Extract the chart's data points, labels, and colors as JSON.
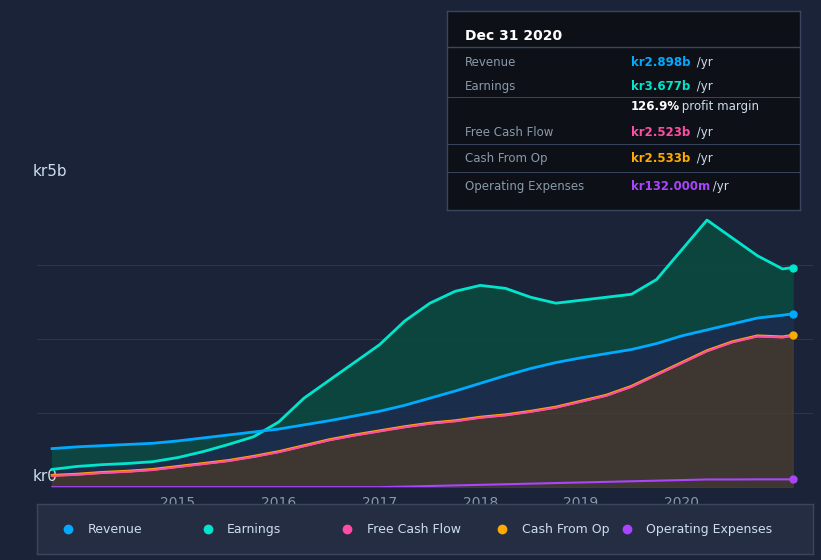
{
  "bg_color": "#1b2338",
  "plot_bg_color": "#1b2338",
  "grid_color": "#2a3550",
  "title_label": "kr5b",
  "zero_label": "kr0",
  "x_ticks": [
    2015,
    2016,
    2017,
    2018,
    2019,
    2020
  ],
  "ylim": [
    0,
    5000000000.0
  ],
  "xlim_start": 2013.6,
  "xlim_end": 2021.3,
  "revenue_color": "#00aaff",
  "earnings_color": "#00e5cc",
  "fcf_color": "#ff4da6",
  "cashop_color": "#ffaa00",
  "opex_color": "#aa44ff",
  "cashop_fill_color": "#4a3f2f",
  "revenue_fill_color": "#1a3050",
  "earnings_fill_color": "#0a4a40",
  "legend_bg": "#252d42",
  "legend_border": "#3a4560",
  "infobox_bg": "#0d1117",
  "infobox_border": "#3a4560",
  "series": {
    "time": [
      2013.75,
      2014.0,
      2014.25,
      2014.5,
      2014.75,
      2015.0,
      2015.25,
      2015.5,
      2015.75,
      2016.0,
      2016.25,
      2016.5,
      2016.75,
      2017.0,
      2017.25,
      2017.5,
      2017.75,
      2018.0,
      2018.25,
      2018.5,
      2018.75,
      2019.0,
      2019.25,
      2019.5,
      2019.75,
      2020.0,
      2020.25,
      2020.5,
      2020.75,
      2021.0,
      2021.1
    ],
    "revenue": [
      650000000.0,
      680000000.0,
      700000000.0,
      720000000.0,
      740000000.0,
      780000000.0,
      830000000.0,
      880000000.0,
      930000000.0,
      980000000.0,
      1050000000.0,
      1120000000.0,
      1200000000.0,
      1280000000.0,
      1380000000.0,
      1500000000.0,
      1620000000.0,
      1750000000.0,
      1880000000.0,
      2000000000.0,
      2100000000.0,
      2180000000.0,
      2250000000.0,
      2320000000.0,
      2420000000.0,
      2550000000.0,
      2650000000.0,
      2750000000.0,
      2850000000.0,
      2898000000.0,
      2920000000.0
    ],
    "earnings": [
      300000000.0,
      350000000.0,
      380000000.0,
      400000000.0,
      430000000.0,
      500000000.0,
      600000000.0,
      720000000.0,
      850000000.0,
      1100000000.0,
      1500000000.0,
      1800000000.0,
      2100000000.0,
      2400000000.0,
      2800000000.0,
      3100000000.0,
      3300000000.0,
      3400000000.0,
      3350000000.0,
      3200000000.0,
      3100000000.0,
      3150000000.0,
      3200000000.0,
      3250000000.0,
      3500000000.0,
      4000000000.0,
      4500000000.0,
      4200000000.0,
      3900000000.0,
      3677000000.0,
      3700000000.0
    ],
    "cashop": [
      200000000.0,
      220000000.0,
      250000000.0,
      270000000.0,
      300000000.0,
      350000000.0,
      400000000.0,
      450000000.0,
      520000000.0,
      600000000.0,
      700000000.0,
      800000000.0,
      880000000.0,
      950000000.0,
      1020000000.0,
      1080000000.0,
      1120000000.0,
      1180000000.0,
      1220000000.0,
      1280000000.0,
      1350000000.0,
      1450000000.0,
      1550000000.0,
      1700000000.0,
      1900000000.0,
      2100000000.0,
      2300000000.0,
      2450000000.0,
      2550000000.0,
      2533000000.0,
      2560000000.0
    ],
    "fcf": [
      190000000.0,
      210000000.0,
      240000000.0,
      260000000.0,
      290000000.0,
      340000000.0,
      390000000.0,
      440000000.0,
      510000000.0,
      590000000.0,
      690000000.0,
      790000000.0,
      870000000.0,
      940000000.0,
      1010000000.0,
      1070000000.0,
      1110000000.0,
      1170000000.0,
      1210000000.0,
      1270000000.0,
      1340000000.0,
      1440000000.0,
      1540000000.0,
      1690000000.0,
      1890000000.0,
      2090000000.0,
      2290000000.0,
      2440000000.0,
      2540000000.0,
      2523000000.0,
      2550000000.0
    ],
    "opex": [
      0.0,
      0.0,
      0.0,
      0.0,
      0.0,
      0.0,
      0.0,
      0.0,
      0.0,
      0.0,
      0.0,
      0.0,
      0.0,
      0.0,
      10000000.0,
      20000000.0,
      30000000.0,
      40000000.0,
      50000000.0,
      60000000.0,
      70000000.0,
      80000000.0,
      90000000.0,
      100000000.0,
      110000000.0,
      120000000.0,
      130000000.0,
      130000000.0,
      132000000.0,
      132000000.0,
      132000000.0
    ]
  },
  "infobox": {
    "date": "Dec 31 2020",
    "rows": [
      {
        "label": "Revenue",
        "value": "kr2.898b",
        "unit": " /yr",
        "value_color": "#00aaff"
      },
      {
        "label": "Earnings",
        "value": "kr3.677b",
        "unit": " /yr",
        "value_color": "#00e5cc"
      },
      {
        "label": "",
        "value": "126.9%",
        "unit": " profit margin",
        "value_color": "#ffffff"
      },
      {
        "label": "Free Cash Flow",
        "value": "kr2.523b",
        "unit": " /yr",
        "value_color": "#ff4da6"
      },
      {
        "label": "Cash From Op",
        "value": "kr2.533b",
        "unit": " /yr",
        "value_color": "#ffaa00"
      },
      {
        "label": "Operating Expenses",
        "value": "kr132.000m",
        "unit": " /yr",
        "value_color": "#aa44ff"
      }
    ]
  },
  "legend": [
    {
      "label": "Revenue",
      "color": "#00aaff"
    },
    {
      "label": "Earnings",
      "color": "#00e5cc"
    },
    {
      "label": "Free Cash Flow",
      "color": "#ff4da6"
    },
    {
      "label": "Cash From Op",
      "color": "#ffaa00"
    },
    {
      "label": "Operating Expenses",
      "color": "#aa44ff"
    }
  ]
}
